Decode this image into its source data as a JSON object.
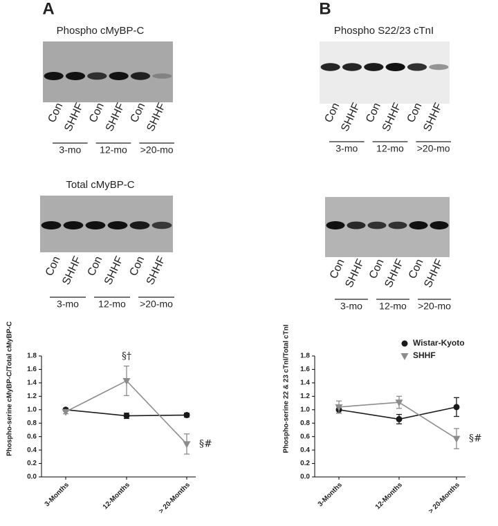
{
  "panels": [
    {
      "label": "A",
      "blots": [
        {
          "title": "Phospho cMyBP-C",
          "lanes": [
            "Con",
            "SHHF",
            "Con",
            "SHHF",
            "Con",
            "SHHF"
          ],
          "groups": [
            "3-mo",
            "12-mo",
            ">20-mo"
          ]
        },
        {
          "title": "Total cMyBP-C",
          "lanes": [
            "Con",
            "SHHF",
            "Con",
            "SHHF",
            "Con",
            "SHHF"
          ],
          "groups": [
            "3-mo",
            "12-mo",
            ">20-mo"
          ]
        }
      ]
    },
    {
      "label": "B",
      "blots": [
        {
          "title": "Phospho S22/23 cTnI",
          "lanes": [
            "Con",
            "SHHF",
            "Con",
            "SHHF",
            "Con",
            "SHHF"
          ],
          "groups": [
            "3-mo",
            "12-mo",
            ">20-mo"
          ]
        },
        {
          "title": "Total cTnI",
          "lanes": [
            "Con",
            "SHHF",
            "Con",
            "SHHF",
            "Con",
            "SHHF"
          ],
          "groups": [
            "3-mo",
            "12-mo",
            ">20-mo"
          ]
        }
      ]
    }
  ],
  "chart_data": [
    {
      "type": "line",
      "y_label": "Phospho-serine cMyBP-C/Total cMyBP-C",
      "categories": [
        "3-Months",
        "12-Months",
        "> 20-Months"
      ],
      "series": [
        {
          "color": "#1a1a1a",
          "marker": "circle",
          "values": [
            1.0,
            0.91,
            0.92
          ],
          "errors": [
            0.02,
            0.04,
            0.03
          ]
        },
        {
          "color": "#8c8c8c",
          "marker": "triangle-down",
          "values": [
            0.97,
            1.43,
            0.49
          ],
          "errors": [
            0.03,
            0.22,
            0.15
          ]
        }
      ],
      "annotations": [
        "§†",
        "§#"
      ],
      "ylim": [
        0,
        1.8
      ],
      "yticks": [
        {
          "value": 0,
          "label": "0.0"
        },
        0.2,
        0.4,
        0.6,
        0.8,
        {
          "value": 1,
          "label": "1.0"
        },
        1.2,
        1.4,
        1.6,
        1.8
      ]
    },
    {
      "type": "line",
      "y_label": "Phospho-serine 22 & 23 cTnI/Total cTnI",
      "categories": [
        "3-Months",
        "12-Months",
        "> 20-Months"
      ],
      "series": [
        {
          "name": "Wistar-Kyoto",
          "color": "#1a1a1a",
          "marker": "circle",
          "values": [
            1.0,
            0.86,
            1.04
          ],
          "errors": [
            0.05,
            0.07,
            0.14
          ]
        },
        {
          "name": "SHHF",
          "color": "#8c8c8c",
          "marker": "triangle-down",
          "values": [
            1.04,
            1.11,
            0.57
          ],
          "errors": [
            0.09,
            0.09,
            0.15
          ]
        }
      ],
      "annotations": [
        "§#"
      ],
      "legend": "upper right",
      "ylim": [
        0,
        1.8
      ],
      "yticks": [
        {
          "value": 0,
          "label": "0.0"
        },
        0.2,
        0.4,
        0.6,
        0.8,
        {
          "value": 1,
          "label": "1.0"
        },
        1.2,
        1.4,
        1.6,
        1.8
      ]
    }
  ]
}
